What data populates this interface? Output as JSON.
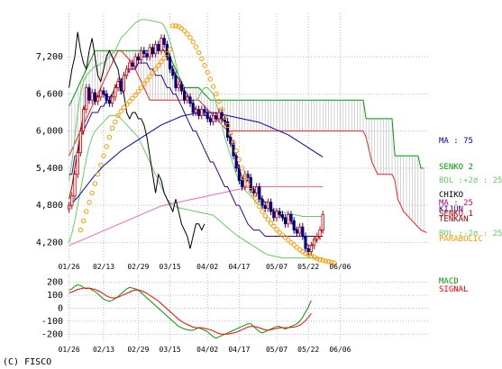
{
  "copyright": "(C) FISCO",
  "chart_data": [
    {
      "type": "candlestick",
      "ylim": [
        3900,
        7900
      ],
      "y_ticks": [
        4200,
        4800,
        5400,
        6000,
        6600,
        7200
      ],
      "y_tick_labels": [
        "4,200",
        "4,800",
        "5,400",
        "6,000",
        "6,600",
        "7,200"
      ],
      "x_tick_labels": [
        "01/26",
        "02/13",
        "02/29",
        "03/15",
        "04/02",
        "04/17",
        "05/07",
        "05/22",
        "06/06"
      ],
      "x_tick_index": [
        0,
        12,
        24,
        35,
        48,
        59,
        72,
        83,
        94
      ],
      "n_periods": 125,
      "legend": [
        {
          "label": "MA : 75",
          "color": "#0000cc"
        },
        {
          "label": "SENKO 2",
          "color": "#009900"
        },
        {
          "label": "BOL :+2σ : 25",
          "color": "#66cc66"
        },
        {
          "label": "CHIKO",
          "color": "#000000"
        },
        {
          "label": "MA : 25",
          "color": "#cc0066"
        },
        {
          "label": "KIJUN",
          "color": "#330099"
        },
        {
          "label": "SENKO 1",
          "color": "#cc0000"
        },
        {
          "label": "TENKAN",
          "color": "#990000"
        },
        {
          "label": "BOL :-2σ : 25",
          "color": "#66cc66"
        },
        {
          "label": "PARABOLIC",
          "color": "#ff9900"
        }
      ],
      "candles_close": [
        4800,
        4950,
        5300,
        5650,
        6000,
        6350,
        6700,
        6500,
        6620,
        6480,
        6550,
        6650,
        6600,
        6500,
        6450,
        6550,
        6700,
        6800,
        6650,
        6900,
        7000,
        7100,
        7050,
        7200,
        7150,
        7300,
        7250,
        7200,
        7350,
        7250,
        7400,
        7300,
        7500,
        7400,
        7200,
        7000,
        6900,
        6700,
        6750,
        6650,
        6500,
        6550,
        6450,
        6300,
        6350,
        6250,
        6350,
        6300,
        6200,
        6150,
        6250,
        6200,
        6300,
        6200,
        6150,
        5900,
        5800,
        5600,
        5400,
        5200,
        5100,
        5300,
        5250,
        5050,
        5000,
        5100,
        4900,
        4800,
        4750,
        4850,
        4700,
        4600,
        4700,
        4650,
        4600,
        4500,
        4650,
        4550,
        4400,
        4350,
        4450,
        4300,
        4100,
        4050,
        4150,
        4250,
        4300,
        4400,
        4650
      ],
      "ma75": [
        4780,
        4830,
        4880,
        4930,
        4990,
        5050,
        5110,
        5170,
        5230,
        5290,
        5340,
        5390,
        5440,
        5480,
        5520,
        5560,
        5600,
        5640,
        5680,
        5710,
        5740,
        5770,
        5800,
        5830,
        5860,
        5890,
        5920,
        5950,
        5980,
        6010,
        6040,
        6070,
        6100,
        6120,
        6140,
        6160,
        6180,
        6200,
        6220,
        6240,
        6250,
        6260,
        6270,
        6280,
        6285,
        6290,
        6295,
        6300,
        6300,
        6300,
        6295,
        6290,
        6280,
        6270,
        6260,
        6250,
        6240,
        6230,
        6220,
        6210,
        6200,
        6190,
        6180,
        6170,
        6160,
        6150,
        6140,
        6120,
        6100,
        6080,
        6060,
        6040,
        6020,
        6000,
        5980,
        5960,
        5940,
        5910,
        5880,
        5850,
        5820,
        5790,
        5760,
        5730,
        5700,
        5670,
        5640,
        5610,
        5580
      ],
      "ma25": [
        4150,
        4170,
        4190,
        4210,
        4230,
        4250,
        4270,
        4290,
        4310,
        4330,
        4350,
        4370,
        4390,
        4410,
        4430,
        4450,
        4470,
        4490,
        4510,
        4530,
        4550,
        4570,
        4590,
        4610,
        4630,
        4650,
        4670,
        4690,
        4710,
        4730,
        4750,
        4770,
        4790,
        4800,
        4810,
        4820,
        4830,
        4840,
        4850,
        4860,
        4870,
        4880,
        4890,
        4900,
        4910,
        4920,
        4930,
        4940,
        4950,
        4960,
        4970,
        4980,
        4990,
        5000,
        5010,
        5020,
        5030,
        5040,
        5050,
        5060,
        5070,
        5080,
        5090,
        5100,
        5100,
        5100,
        5100,
        5100,
        5100,
        5100,
        5100,
        5100,
        5100,
        5100,
        5100,
        5100,
        5100,
        5100,
        5100,
        5100,
        5100,
        5100,
        5100,
        5100,
        5100,
        5100,
        5100,
        5100,
        5100
      ],
      "bol_upper": [
        5200,
        5500,
        5900,
        6300,
        6600,
        6800,
        6900,
        6950,
        7000,
        7050,
        7050,
        7100,
        7100,
        7150,
        7200,
        7250,
        7300,
        7400,
        7500,
        7550,
        7600,
        7650,
        7700,
        7750,
        7780,
        7800,
        7800,
        7800,
        7790,
        7780,
        7770,
        7760,
        7750,
        7700,
        7600,
        7450,
        7300,
        7100,
        6900,
        6700,
        6600,
        6550,
        6500,
        6480,
        6500,
        6550,
        6650,
        6700,
        6700,
        6650,
        6600,
        6450,
        6300,
        6100,
        5900,
        5750,
        5600,
        5450,
        5300,
        5200,
        5100,
        5050,
        5000,
        4950,
        4900,
        4850,
        4800,
        4780,
        4760,
        4750,
        4740,
        4730,
        4720,
        4700,
        4690,
        4680,
        4670,
        4660,
        4650,
        4640,
        4630,
        4620,
        4620,
        4620,
        4620,
        4620,
        4620,
        4620,
        4620
      ],
      "bol_lower": [
        4200,
        4350,
        4550,
        4800,
        5050,
        5300,
        5550,
        5750,
        5900,
        6000,
        6050,
        6100,
        6150,
        6200,
        6250,
        6250,
        6250,
        6250,
        6200,
        6150,
        6100,
        6050,
        6000,
        5950,
        5900,
        5800,
        5700,
        5600,
        5500,
        5400,
        5300,
        5200,
        5100,
        5000,
        4900,
        4850,
        4800,
        4780,
        4760,
        4750,
        4740,
        4730,
        4720,
        4710,
        4700,
        4690,
        4680,
        4670,
        4660,
        4650,
        4640,
        4600,
        4560,
        4520,
        4480,
        4440,
        4400,
        4360,
        4320,
        4290,
        4260,
        4230,
        4200,
        4170,
        4140,
        4110,
        4080,
        4050,
        4020,
        4000,
        3990,
        3980,
        3970,
        3960,
        3950,
        3950,
        3950,
        3950,
        3950,
        3950,
        3950,
        3950,
        3950,
        3950,
        3950,
        3950,
        3950,
        3950,
        3950
      ],
      "senko2": [
        6400,
        6500,
        6600,
        6700,
        6800,
        6900,
        7000,
        7100,
        7200,
        7300,
        7300,
        7300,
        7300,
        7300,
        7300,
        7300,
        7300,
        7300,
        7300,
        7300,
        7300,
        7300,
        7300,
        7300,
        7300,
        7300,
        7300,
        7300,
        7300,
        7300,
        7300,
        7300,
        7300,
        7300,
        7300,
        7200,
        7100,
        7000,
        6900,
        6800,
        6700,
        6700,
        6700,
        6700,
        6700,
        6700,
        6650,
        6600,
        6550,
        6500,
        6500,
        6500,
        6500,
        6500,
        6500,
        6500,
        6500,
        6500,
        6500,
        6500,
        6500,
        6500,
        6500,
        6500,
        6500,
        6500,
        6500,
        6500,
        6500,
        6500,
        6500,
        6500,
        6500,
        6500,
        6500,
        6500,
        6500,
        6500,
        6500,
        6500,
        6500,
        6500,
        6500,
        6500,
        6500,
        6500,
        6500,
        6500,
        6500,
        6500,
        6500,
        6500,
        6500,
        6500,
        6500,
        6500,
        6500,
        6500,
        6500,
        6500,
        6500,
        6500,
        6500,
        6200,
        6200,
        6200,
        6200,
        6200,
        6200,
        6200,
        6200,
        6200,
        6200,
        5600,
        5600,
        5600,
        5600,
        5600,
        5600,
        5600,
        5600,
        5600,
        5400,
        5400
      ],
      "senko1": [
        5600,
        5700,
        5800,
        5900,
        6000,
        6100,
        6200,
        6300,
        6400,
        6500,
        6600,
        6700,
        6800,
        6900,
        7000,
        7100,
        7200,
        7300,
        7300,
        7250,
        7200,
        7150,
        7100,
        7000,
        6900,
        6800,
        6700,
        6600,
        6500,
        6500,
        6500,
        6500,
        6500,
        6500,
        6500,
        6500,
        6500,
        6500,
        6500,
        6500,
        6500,
        6500,
        6500,
        6500,
        6500,
        6500,
        6450,
        6400,
        6350,
        6300,
        6250,
        6200,
        6150,
        6100,
        6050,
        6000,
        6000,
        6000,
        6000,
        6000,
        6000,
        6000,
        6000,
        6000,
        6000,
        6000,
        6000,
        6000,
        6000,
        6000,
        6000,
        6000,
        6000,
        6000,
        6000,
        6000,
        6000,
        6000,
        6000,
        6000,
        6000,
        6000,
        6000,
        6000,
        6000,
        6000,
        6000,
        6000,
        6000,
        6000,
        6000,
        6000,
        6000,
        6000,
        6000,
        6000,
        6000,
        6000,
        6000,
        6000,
        6000,
        6000,
        6000,
        5900,
        5700,
        5500,
        5400,
        5300,
        5300,
        5300,
        5300,
        5300,
        5300,
        5200,
        4900,
        4800,
        4700,
        4650,
        4600,
        4550,
        4500,
        4450,
        4400,
        4380,
        4360
      ],
      "kijun": [
        5300,
        5300,
        5600,
        5600,
        5900,
        6000,
        6100,
        6200,
        6300,
        6300,
        6300,
        6400,
        6400,
        6500,
        6500,
        6600,
        6700,
        6800,
        6800,
        6900,
        6900,
        7000,
        7000,
        7000,
        7100,
        7100,
        7100,
        7100,
        7000,
        7000,
        6900,
        6900,
        6900,
        6800,
        6700,
        6700,
        6600,
        6600,
        6500,
        6400,
        6300,
        6200,
        6100,
        6000,
        6000,
        5900,
        5800,
        5700,
        5600,
        5500,
        5500,
        5400,
        5300,
        5200,
        5100,
        5100,
        5000,
        4900,
        4800,
        4800,
        4700,
        4600,
        4500,
        4450,
        4400,
        4400,
        4400,
        4350,
        4300,
        4300,
        4300,
        4300,
        4300,
        4300,
        4300,
        4300,
        4300,
        4300,
        4300,
        4300,
        4300,
        4300,
        4300,
        4300,
        4300,
        4300,
        4300,
        4300,
        4300
      ],
      "tenkan": [
        4900,
        5100,
        5400,
        5700,
        6000,
        6300,
        6500,
        6550,
        6550,
        6550,
        6550,
        6600,
        6600,
        6550,
        6550,
        6600,
        6700,
        6750,
        6750,
        6850,
        6950,
        7050,
        7050,
        7150,
        7150,
        7200,
        7200,
        7200,
        7250,
        7250,
        7300,
        7300,
        7350,
        7300,
        7200,
        7100,
        7000,
        6900,
        6850,
        6750,
        6650,
        6600,
        6500,
        6400,
        6350,
        6300,
        6300,
        6250,
        6250,
        6200,
        6200,
        6200,
        6200,
        6200,
        6150,
        6000,
        5850,
        5700,
        5550,
        5400,
        5250,
        5200,
        5200,
        5100,
        5050,
        5050,
        4950,
        4900,
        4850,
        4850,
        4750,
        4700,
        4700,
        4650,
        4600,
        4550,
        4600,
        4550,
        4450,
        4400,
        4400,
        4350,
        4200,
        4150,
        4150,
        4200,
        4250,
        4300,
        4450
      ],
      "chiko": [
        6700,
        7000,
        7200,
        7600,
        7300,
        7100,
        7000,
        7300,
        7500,
        7200,
        6900,
        6800,
        7000,
        7200,
        7300,
        7200,
        7100,
        7000,
        6700,
        6600,
        6300,
        6200,
        6300,
        6300,
        6200,
        6200,
        6100,
        5900,
        5600,
        5300,
        5000,
        5300,
        5200,
        5000,
        4900,
        4800,
        4700,
        4900,
        4700,
        4500,
        4400,
        4300,
        4100,
        4300,
        4500,
        4500,
        4400,
        4500
      ],
      "parabolic": [
        4400,
        4550,
        4700,
        4850,
        5000,
        5150,
        5300,
        5450,
        5600,
        5750,
        5900,
        6050,
        6150,
        6250,
        6320,
        6380,
        6430,
        6480,
        6530,
        6580,
        6640,
        6700,
        6760,
        6820,
        6880,
        6940,
        7000,
        7060,
        7120,
        7180,
        7250,
        7320,
        7700,
        7700,
        7690,
        7660,
        7620,
        7570,
        7510,
        7440,
        7360,
        7270,
        7170,
        7060,
        6950,
        6840,
        6720,
        6600,
        6480,
        6350,
        6220,
        6090,
        5960,
        5820,
        5680,
        5540,
        5400,
        5270,
        5150,
        5040,
        4950,
        4860,
        4780,
        4700,
        4630,
        4570,
        4510,
        4460,
        4410,
        4360,
        4320,
        4280,
        4240,
        4200,
        4160,
        4120,
        4080,
        4050,
        4020,
        4000,
        3980,
        3960,
        3940,
        3920,
        3910,
        3900,
        3890,
        3880,
        3870
      ],
      "parabolic_offset": 4
    },
    {
      "type": "line",
      "ylim": [
        -260,
        260
      ],
      "y_ticks": [
        -200,
        -100,
        0,
        100,
        200
      ],
      "y_tick_labels": [
        "-200",
        "-100",
        "0",
        "100",
        "200"
      ],
      "x_tick_labels": [
        "01/26",
        "02/13",
        "02/29",
        "03/15",
        "04/02",
        "04/17",
        "05/07",
        "05/22",
        "06/06"
      ],
      "series": [
        {
          "name": "MACD",
          "color": "#009900",
          "values": [
            140,
            150,
            170,
            180,
            175,
            160,
            150,
            155,
            140,
            130,
            110,
            90,
            70,
            60,
            55,
            60,
            75,
            90,
            110,
            130,
            150,
            160,
            155,
            150,
            140,
            120,
            100,
            80,
            60,
            40,
            20,
            0,
            -20,
            -40,
            -60,
            -80,
            -100,
            -120,
            -140,
            -150,
            -160,
            -165,
            -170,
            -170,
            -160,
            -150,
            -160,
            -170,
            -180,
            -200,
            -220,
            -230,
            -220,
            -210,
            -200,
            -190,
            -180,
            -170,
            -160,
            -150,
            -140,
            -130,
            -120,
            -120,
            -140,
            -160,
            -180,
            -190,
            -180,
            -170,
            -160,
            -150,
            -140,
            -140,
            -150,
            -160,
            -150,
            -140,
            -130,
            -120,
            -100,
            -70,
            -30,
            10,
            60
          ]
        },
        {
          "name": "SIGNAL",
          "color": "#ff0000",
          "values": [
            120,
            125,
            135,
            145,
            150,
            155,
            155,
            155,
            150,
            145,
            135,
            125,
            110,
            95,
            85,
            80,
            80,
            85,
            95,
            105,
            115,
            125,
            135,
            140,
            140,
            135,
            125,
            115,
            100,
            85,
            70,
            55,
            35,
            15,
            -5,
            -25,
            -45,
            -65,
            -85,
            -100,
            -115,
            -125,
            -135,
            -145,
            -150,
            -150,
            -150,
            -155,
            -160,
            -165,
            -175,
            -185,
            -195,
            -200,
            -200,
            -200,
            -195,
            -190,
            -185,
            -175,
            -165,
            -155,
            -145,
            -140,
            -140,
            -145,
            -150,
            -160,
            -165,
            -170,
            -165,
            -160,
            -155,
            -150,
            -150,
            -150,
            -150,
            -148,
            -145,
            -140,
            -130,
            -115,
            -95,
            -70,
            -40
          ]
        }
      ]
    }
  ]
}
